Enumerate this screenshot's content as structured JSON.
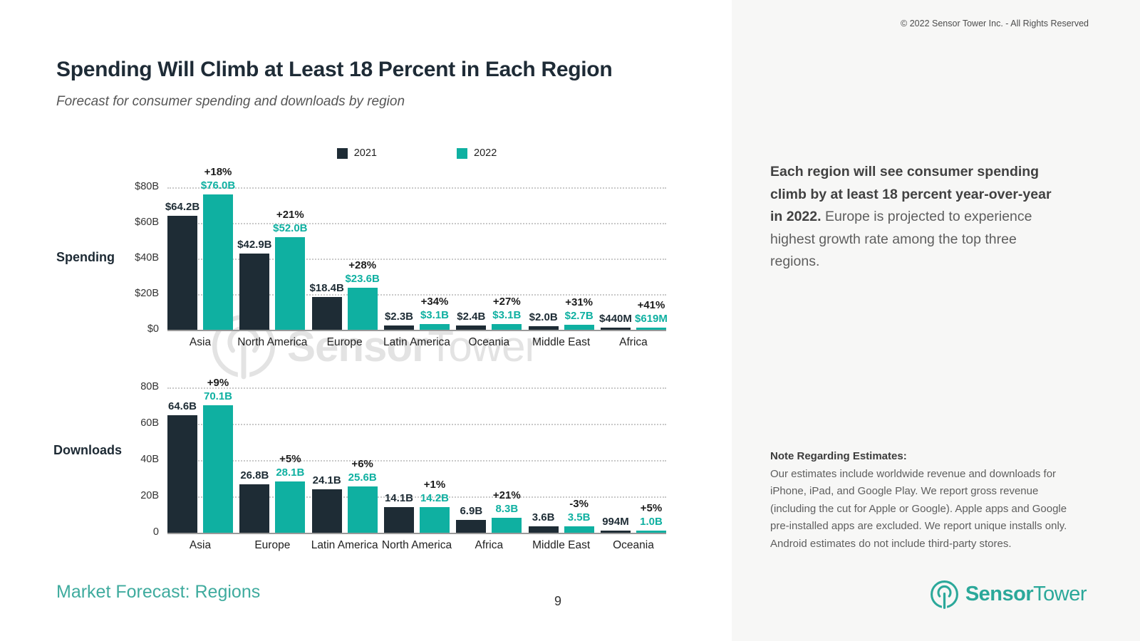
{
  "page": {
    "title": "Spending Will Climb at Least 18 Percent in Each Region",
    "subtitle": "Forecast for consumer spending and downloads by region",
    "copyright": "© 2022 Sensor Tower Inc. - All Rights Reserved",
    "footer_label": "Market Forecast: Regions",
    "page_number": "9",
    "watermark_bold": "Sensor",
    "watermark_regular": "Tower",
    "logo_bold": "Sensor",
    "logo_regular": "Tower"
  },
  "colors": {
    "dark_2021": "#1e2c35",
    "teal_2022": "#0fb0a1",
    "brand_teal": "#2ba89a",
    "footer_teal": "#3fab9e",
    "sidebar_bg": "#f7f7f6",
    "gridline": "#c9c9c9"
  },
  "legend": [
    {
      "label": "2021",
      "color": "#1e2c35"
    },
    {
      "label": "2022",
      "color": "#0fb0a1"
    }
  ],
  "sidebar": {
    "highlight_bold": "Each region will see consumer spending climb by at least 18 percent year-over-year in 2022.",
    "highlight_rest": "Europe is projected to experience highest growth rate among the top three regions.",
    "note_title": "Note Regarding Estimates:",
    "note_body": "Our estimates include worldwide revenue and downloads for iPhone, iPad, and Google Play. We report gross revenue (including the cut for Apple or Google). Apple apps and Google pre-installed apps are excluded. We report unique installs only. Android estimates do not include third-party stores."
  },
  "chart_data": [
    {
      "type": "bar",
      "title": "Spending",
      "unit": "USD billions",
      "categories": [
        "Asia",
        "North America",
        "Europe",
        "Latin America",
        "Oceania",
        "Middle East",
        "Africa"
      ],
      "series": [
        {
          "name": "2021",
          "values": [
            64.2,
            42.9,
            18.4,
            2.3,
            2.4,
            2.0,
            0.44
          ],
          "labels": [
            "$64.2B",
            "$42.9B",
            "$18.4B",
            "$2.3B",
            "$2.4B",
            "$2.0B",
            "$440M"
          ]
        },
        {
          "name": "2022",
          "values": [
            76.0,
            52.0,
            23.6,
            3.1,
            3.1,
            2.7,
            0.619
          ],
          "labels": [
            "$76.0B",
            "$52.0B",
            "$23.6B",
            "$3.1B",
            "$3.1B",
            "$2.7B",
            "$619M"
          ]
        }
      ],
      "growth": [
        "+18%",
        "+21%",
        "+28%",
        "+34%",
        "+27%",
        "+31%",
        "+41%"
      ],
      "ticks": [
        "$0",
        "$20B",
        "$40B",
        "$60B",
        "$80B"
      ],
      "ylim": [
        0,
        80
      ],
      "grid": "dotted-horizontal",
      "legend_position": "top-center"
    },
    {
      "type": "bar",
      "title": "Downloads",
      "unit": "downloads billions",
      "categories": [
        "Asia",
        "Europe",
        "Latin America",
        "North America",
        "Africa",
        "Middle East",
        "Oceania"
      ],
      "series": [
        {
          "name": "2021",
          "values": [
            64.6,
            26.8,
            24.1,
            14.1,
            6.9,
            3.6,
            0.994
          ],
          "labels": [
            "64.6B",
            "26.8B",
            "24.1B",
            "14.1B",
            "6.9B",
            "3.6B",
            "994M"
          ]
        },
        {
          "name": "2022",
          "values": [
            70.1,
            28.1,
            25.6,
            14.2,
            8.3,
            3.5,
            1.0
          ],
          "labels": [
            "70.1B",
            "28.1B",
            "25.6B",
            "14.2B",
            "8.3B",
            "3.5B",
            "1.0B"
          ]
        }
      ],
      "growth": [
        "+9%",
        "+5%",
        "+6%",
        "+1%",
        "+21%",
        "-3%",
        "+5%"
      ],
      "ticks": [
        "0",
        "20B",
        "40B",
        "60B",
        "80B"
      ],
      "ylim": [
        0,
        80
      ],
      "grid": "dotted-horizontal",
      "legend_position": "shared-top"
    }
  ]
}
